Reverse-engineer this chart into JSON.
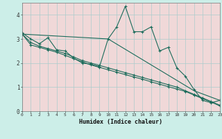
{
  "title": "",
  "xlabel": "Humidex (Indice chaleur)",
  "bg_outer": "#cceee8",
  "bg_plot": "#f0d8d8",
  "grid_color": "#aacccc",
  "line_color": "#1a6b5a",
  "xlim": [
    0,
    23
  ],
  "ylim": [
    0,
    4.5
  ],
  "xticks": [
    0,
    1,
    2,
    3,
    4,
    5,
    6,
    7,
    8,
    9,
    10,
    11,
    12,
    13,
    14,
    15,
    16,
    17,
    18,
    19,
    20,
    21,
    22,
    23
  ],
  "yticks": [
    0,
    1,
    2,
    3,
    4
  ],
  "series1_x": [
    0,
    1,
    2,
    3,
    4,
    5,
    6,
    7,
    8,
    9,
    10,
    11,
    12,
    13,
    14,
    15,
    16,
    17,
    18,
    19,
    20,
    21,
    22,
    23
  ],
  "series1_y": [
    3.25,
    3.0,
    2.8,
    3.05,
    2.55,
    2.5,
    2.2,
    2.0,
    1.95,
    1.85,
    3.0,
    3.5,
    4.35,
    3.3,
    3.3,
    3.5,
    2.5,
    2.65,
    1.8,
    1.45,
    0.9,
    0.45,
    0.35,
    0.45
  ],
  "series2_x": [
    0,
    1,
    2,
    3,
    4,
    5,
    6,
    7,
    8,
    9,
    10,
    11,
    12,
    13,
    14,
    15,
    16,
    17,
    18,
    19,
    20,
    21,
    22,
    23
  ],
  "series2_y": [
    3.2,
    2.85,
    2.7,
    2.6,
    2.5,
    2.4,
    2.25,
    2.1,
    2.0,
    1.9,
    1.8,
    1.7,
    1.6,
    1.5,
    1.4,
    1.3,
    1.2,
    1.1,
    1.0,
    0.85,
    0.7,
    0.55,
    0.4,
    0.25
  ],
  "series3_x": [
    0,
    1,
    2,
    3,
    4,
    5,
    6,
    7,
    8,
    9,
    10,
    11,
    12,
    13,
    14,
    15,
    16,
    17,
    18,
    19,
    20,
    21,
    22,
    23
  ],
  "series3_y": [
    3.2,
    2.75,
    2.65,
    2.55,
    2.45,
    2.32,
    2.18,
    2.05,
    1.92,
    1.82,
    1.72,
    1.62,
    1.52,
    1.42,
    1.33,
    1.22,
    1.12,
    1.02,
    0.92,
    0.82,
    0.67,
    0.52,
    0.38,
    0.22
  ],
  "series4_x": [
    0,
    10,
    20,
    23
  ],
  "series4_y": [
    3.2,
    3.0,
    0.85,
    0.45
  ]
}
